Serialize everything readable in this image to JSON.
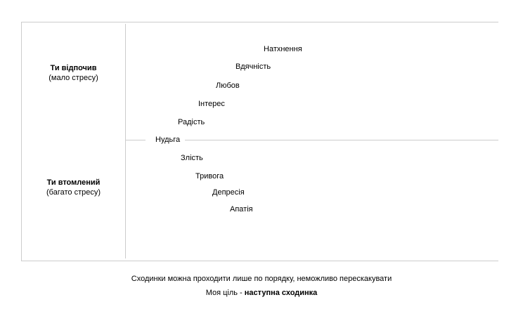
{
  "left_panel": {
    "top": {
      "title": "Ти відпочив",
      "subtitle": "(мало стресу)"
    },
    "bottom": {
      "title": "Ти втомлений",
      "subtitle": "(багато стресу)"
    }
  },
  "steps": {
    "inspiration": "Натхнення",
    "gratitude": "Вдячність",
    "love": "Любов",
    "interest": "Інтерес",
    "joy": "Радість",
    "boredom": "Нудьга",
    "anger": "Злість",
    "anxiety": "Тривога",
    "depression": "Депресія",
    "apathy": "Апатія"
  },
  "footer": {
    "line1": "Сходинки можна проходити лише по порядку, неможливо перескакувати",
    "line2_prefix": "Моя ціль - ",
    "line2_bold": "наступна сходинка"
  }
}
